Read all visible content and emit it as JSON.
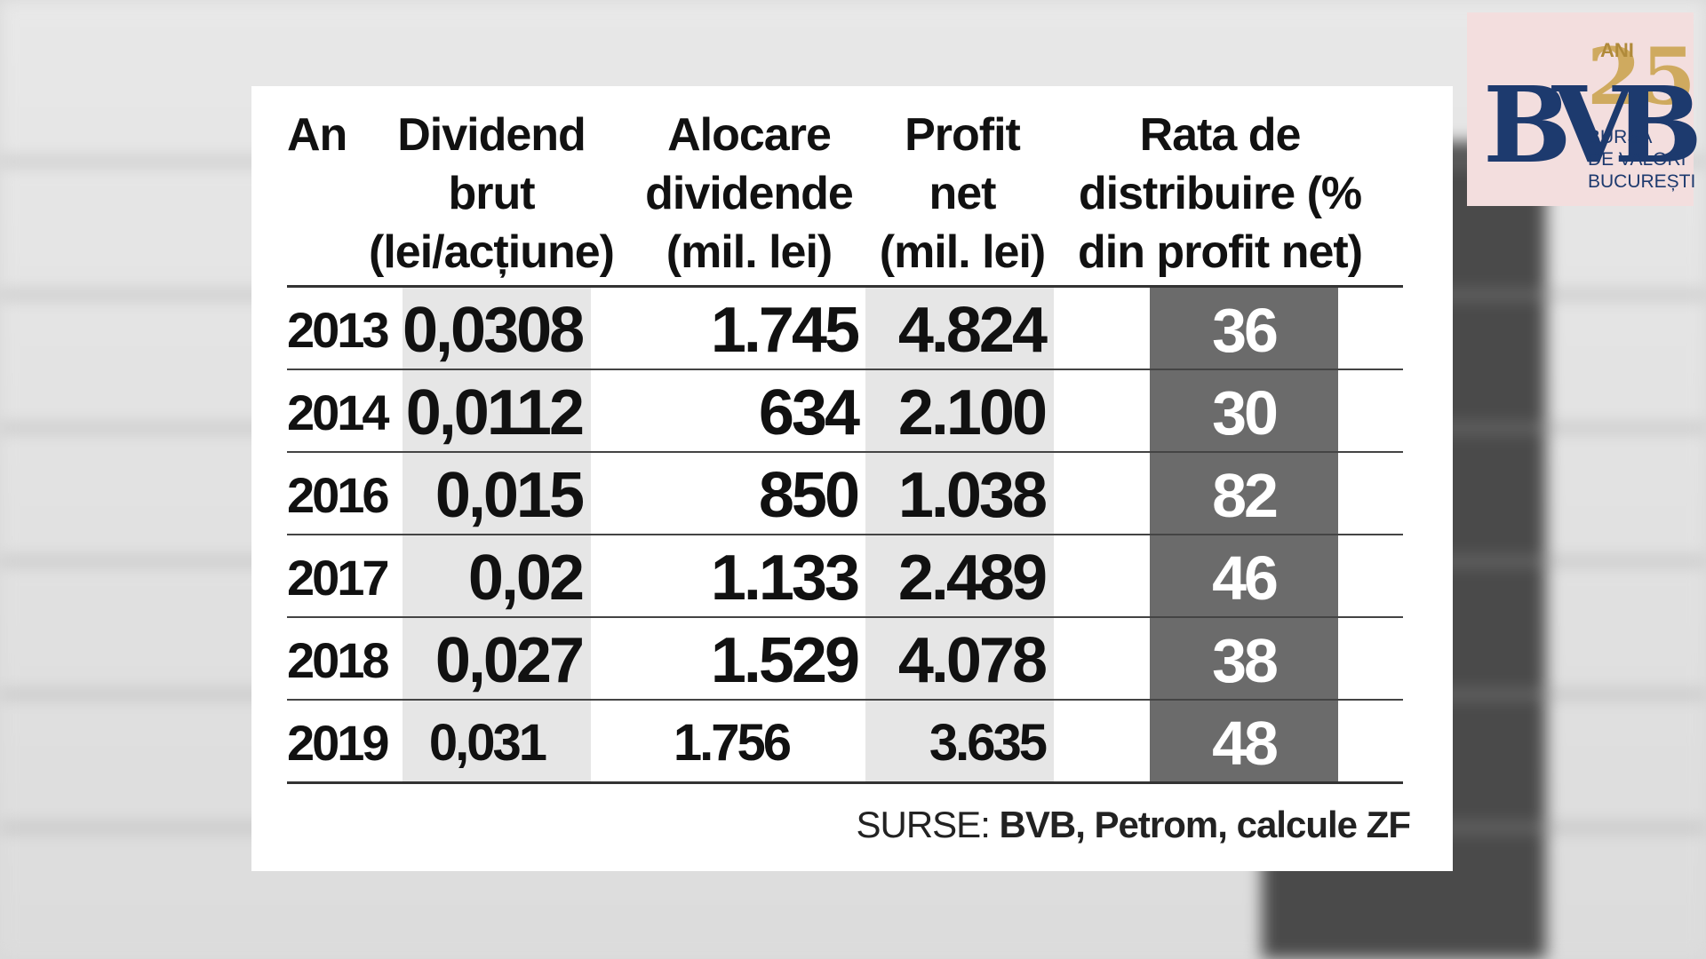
{
  "chart_data": {
    "type": "table",
    "columns": [
      "An",
      "Dividend brut (lei/acțiune)",
      "Alocare dividende (mil. lei)",
      "Profit net (mil. lei)",
      "Rata de distribuire (% din profit net)"
    ],
    "header_lines": {
      "an": [
        "An"
      ],
      "div": [
        "Dividend",
        "brut",
        "(lei/acțiune)"
      ],
      "aloc": [
        "Alocare",
        "dividende",
        "(mil. lei)"
      ],
      "profit": [
        "Profit",
        "net",
        "(mil. lei)"
      ],
      "rata": [
        "Rata de",
        "distribuire (%",
        "din profit net)"
      ]
    },
    "rows": [
      {
        "year": "2013",
        "dividend": "0,0308",
        "alocare": "1.745",
        "profit": "4.824",
        "rata": "36"
      },
      {
        "year": "2014",
        "dividend": "0,0112",
        "alocare": "634",
        "profit": "2.100",
        "rata": "30"
      },
      {
        "year": "2016",
        "dividend": "0,015",
        "alocare": "850",
        "profit": "1.038",
        "rata": "82"
      },
      {
        "year": "2017",
        "dividend": "0,02",
        "alocare": "1.133",
        "profit": "2.489",
        "rata": "46"
      },
      {
        "year": "2018",
        "dividend": "0,027",
        "alocare": "1.529",
        "profit": "4.078",
        "rata": "38"
      },
      {
        "year": "2019",
        "dividend": "0,031",
        "alocare": "1.756",
        "profit": "3.635",
        "rata": "48"
      }
    ],
    "source_label": "SURSE:",
    "source_value": "BVB, Petrom, calcule ZF"
  },
  "logo": {
    "letters": "BVB",
    "anniversary_small": "ANI",
    "anniversary_number": "25",
    "line1": "BURSA",
    "line2": "DE VALORI",
    "line3": "BUCUREȘTI"
  },
  "colors": {
    "card": "#ffffff",
    "shaded_column": "#e6e6e6",
    "rate_column": "#6b6b6b",
    "logo_blue": "#1d3a6e",
    "logo_gold": "#c9a24a"
  }
}
